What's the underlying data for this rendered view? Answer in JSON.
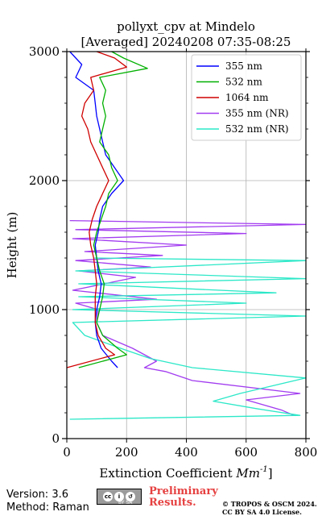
{
  "chart_data": {
    "type": "line",
    "title": "pollyxt_cpv at Mindelo",
    "subtitle": "[Averaged] 20240208 07:35-08:25",
    "xlabel": "Extinction Coefficient [Mm⁻¹]",
    "xlabel_main": "Extinction Coefficient ",
    "xlabel_unit": "Mm",
    "xlabel_exp": "-1",
    "ylabel": "Height (m)",
    "xlim": [
      0,
      800
    ],
    "ylim": [
      0,
      3000
    ],
    "xticks": [
      "0",
      "200",
      "400",
      "600",
      "800"
    ],
    "yticks": [
      "0",
      "1000",
      "2000",
      "3000"
    ],
    "grid": true,
    "legend_position": "top-right",
    "series": [
      {
        "name": "355 nm",
        "color": "#0000ff",
        "points": [
          [
            170,
            550
          ],
          [
            150,
            600
          ],
          [
            115,
            700
          ],
          [
            100,
            800
          ],
          [
            95,
            900
          ],
          [
            100,
            1000
          ],
          [
            110,
            1100
          ],
          [
            115,
            1200
          ],
          [
            105,
            1300
          ],
          [
            100,
            1400
          ],
          [
            95,
            1500
          ],
          [
            105,
            1600
          ],
          [
            110,
            1700
          ],
          [
            120,
            1800
          ],
          [
            150,
            1900
          ],
          [
            190,
            2000
          ],
          [
            160,
            2100
          ],
          [
            130,
            2200
          ],
          [
            120,
            2300
          ],
          [
            110,
            2400
          ],
          [
            100,
            2500
          ],
          [
            95,
            2600
          ],
          [
            90,
            2700
          ],
          [
            30,
            2800
          ],
          [
            50,
            2900
          ],
          [
            10,
            3000
          ]
        ]
      },
      {
        "name": "532 nm",
        "color": "#00b000",
        "points": [
          [
            40,
            550
          ],
          [
            200,
            650
          ],
          [
            170,
            700
          ],
          [
            120,
            800
          ],
          [
            100,
            900
          ],
          [
            110,
            1000
          ],
          [
            120,
            1100
          ],
          [
            125,
            1200
          ],
          [
            110,
            1300
          ],
          [
            100,
            1400
          ],
          [
            90,
            1500
          ],
          [
            100,
            1600
          ],
          [
            115,
            1700
          ],
          [
            130,
            1800
          ],
          [
            140,
            1900
          ],
          [
            170,
            2000
          ],
          [
            150,
            2100
          ],
          [
            140,
            2200
          ],
          [
            110,
            2300
          ],
          [
            120,
            2400
          ],
          [
            130,
            2500
          ],
          [
            120,
            2600
          ],
          [
            130,
            2700
          ],
          [
            110,
            2800
          ],
          [
            270,
            2870
          ],
          [
            190,
            2950
          ],
          [
            150,
            3000
          ]
        ]
      },
      {
        "name": "1064 nm",
        "color": "#d00000",
        "points": [
          [
            0,
            550
          ],
          [
            160,
            650
          ],
          [
            130,
            700
          ],
          [
            105,
            800
          ],
          [
            95,
            900
          ],
          [
            95,
            1000
          ],
          [
            95,
            1100
          ],
          [
            100,
            1200
          ],
          [
            95,
            1300
          ],
          [
            90,
            1400
          ],
          [
            80,
            1500
          ],
          [
            75,
            1600
          ],
          [
            85,
            1700
          ],
          [
            100,
            1800
          ],
          [
            120,
            1900
          ],
          [
            140,
            2000
          ],
          [
            120,
            2100
          ],
          [
            100,
            2200
          ],
          [
            80,
            2300
          ],
          [
            70,
            2400
          ],
          [
            50,
            2500
          ],
          [
            60,
            2600
          ],
          [
            90,
            2700
          ],
          [
            80,
            2800
          ],
          [
            200,
            2880
          ],
          [
            160,
            2950
          ],
          [
            100,
            3000
          ]
        ]
      },
      {
        "name": "355 nm (NR)",
        "color": "#a23cf0",
        "points": [
          [
            760,
            180
          ],
          [
            720,
            220
          ],
          [
            600,
            300
          ],
          [
            780,
            350
          ],
          [
            420,
            450
          ],
          [
            330,
            520
          ],
          [
            260,
            550
          ],
          [
            300,
            600
          ],
          [
            220,
            700
          ],
          [
            120,
            800
          ],
          [
            100,
            900
          ],
          [
            105,
            1000
          ],
          [
            30,
            1050
          ],
          [
            300,
            1080
          ],
          [
            20,
            1150
          ],
          [
            230,
            1250
          ],
          [
            40,
            1300
          ],
          [
            280,
            1330
          ],
          [
            30,
            1380
          ],
          [
            320,
            1420
          ],
          [
            60,
            1450
          ],
          [
            400,
            1500
          ],
          [
            20,
            1550
          ],
          [
            600,
            1590
          ],
          [
            30,
            1620
          ],
          [
            800,
            1660
          ],
          [
            10,
            1690
          ]
        ]
      },
      {
        "name": "532 nm (NR)",
        "color": "#2ce8c8",
        "points": [
          [
            10,
            150
          ],
          [
            780,
            180
          ],
          [
            640,
            230
          ],
          [
            490,
            290
          ],
          [
            580,
            350
          ],
          [
            800,
            470
          ],
          [
            420,
            550
          ],
          [
            280,
            620
          ],
          [
            180,
            700
          ],
          [
            60,
            800
          ],
          [
            20,
            900
          ],
          [
            800,
            950
          ],
          [
            20,
            1000
          ],
          [
            600,
            1050
          ],
          [
            40,
            1100
          ],
          [
            700,
            1130
          ],
          [
            40,
            1200
          ],
          [
            800,
            1240
          ],
          [
            30,
            1300
          ],
          [
            800,
            1380
          ],
          [
            90,
            1400
          ]
        ]
      }
    ]
  },
  "footer": {
    "version": "Version: 3.6",
    "method": "Method: Raman",
    "license_badge": "BY SA",
    "preliminary_line1": "Preliminary",
    "preliminary_line2": "Results.",
    "copyright_line1": "© TROPOS & OSCM 2024.",
    "copyright_line2": "CC BY SA 4.0 License."
  }
}
